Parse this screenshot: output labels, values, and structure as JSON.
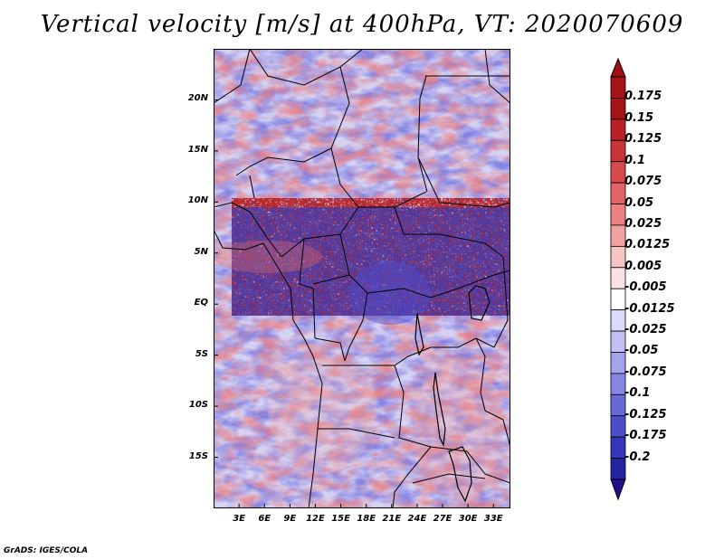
{
  "title": "Vertical velocity [m/s] at 400hPa, VT: 2020070609",
  "credit": "GrADS: IGES/COLA",
  "map": {
    "lon_range": [
      0,
      35
    ],
    "lat_range": [
      -20,
      25
    ],
    "lat_ticks": [
      {
        "value": 20,
        "label": "20N"
      },
      {
        "value": 15,
        "label": "15N"
      },
      {
        "value": 10,
        "label": "10N"
      },
      {
        "value": 5,
        "label": "5N"
      },
      {
        "value": 0,
        "label": "EQ"
      },
      {
        "value": -5,
        "label": "5S"
      },
      {
        "value": -10,
        "label": "10S"
      },
      {
        "value": -15,
        "label": "15S"
      }
    ],
    "lon_ticks": [
      {
        "value": 3,
        "label": "3E"
      },
      {
        "value": 6,
        "label": "6E"
      },
      {
        "value": 9,
        "label": "9E"
      },
      {
        "value": 12,
        "label": "12E"
      },
      {
        "value": 15,
        "label": "15E"
      },
      {
        "value": 18,
        "label": "18E"
      },
      {
        "value": 21,
        "label": "21E"
      },
      {
        "value": 24,
        "label": "24E"
      },
      {
        "value": 27,
        "label": "27E"
      },
      {
        "value": 30,
        "label": "30E"
      },
      {
        "value": 33,
        "label": "33E"
      }
    ]
  },
  "colorbar": {
    "top_color": "#a01010",
    "bottom_color": "#20108c",
    "levels": [
      {
        "label": "0.175",
        "color": "#a51515"
      },
      {
        "label": "0.15",
        "color": "#b82222"
      },
      {
        "label": "0.125",
        "color": "#c93434"
      },
      {
        "label": "0.1",
        "color": "#d84a4a"
      },
      {
        "label": "0.075",
        "color": "#e26464"
      },
      {
        "label": "0.05",
        "color": "#ea8282"
      },
      {
        "label": "0.025",
        "color": "#f1a2a2"
      },
      {
        "label": "0.0125",
        "color": "#f7c3c3"
      },
      {
        "label": "0.005",
        "color": "#fbe2e2"
      },
      {
        "label": "-0.005",
        "color": "#ffffff"
      },
      {
        "label": "-0.0125",
        "color": "#dcdcfa"
      },
      {
        "label": "-0.025",
        "color": "#c0c0f4"
      },
      {
        "label": "-0.05",
        "color": "#a3a3ee"
      },
      {
        "label": "-0.075",
        "color": "#8585e4"
      },
      {
        "label": "-0.1",
        "color": "#6868d8"
      },
      {
        "label": "-0.125",
        "color": "#4d4dca"
      },
      {
        "label": "-0.175",
        "color": "#3535b8"
      },
      {
        "label": "-0.2",
        "color": "#2424a2"
      }
    ]
  }
}
